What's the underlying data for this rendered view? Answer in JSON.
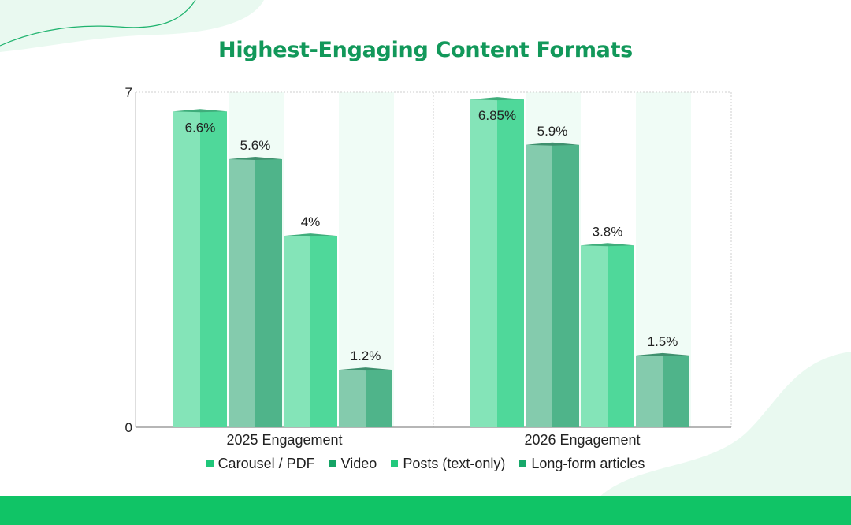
{
  "chart_data": {
    "type": "bar",
    "title": "Highest-Engaging Content Formats",
    "xlabel": "",
    "ylabel": "",
    "ylim": [
      0,
      7
    ],
    "y_ticks": [
      "0",
      "7"
    ],
    "categories": [
      "2025 Engagement",
      "2026 Engagement"
    ],
    "series": [
      {
        "name": "Carousel / PDF",
        "values": [
          6.6,
          6.85
        ],
        "labels": [
          "6.6%",
          "6.85%"
        ],
        "color": "#4fd89a",
        "legend_color": "#1fc77a"
      },
      {
        "name": "Video",
        "values": [
          5.6,
          5.9
        ],
        "labels": [
          "5.6%",
          "5.9%"
        ],
        "color": "#4fb48a",
        "legend_color": "#15a365"
      },
      {
        "name": "Posts (text-only)",
        "values": [
          4,
          3.8
        ],
        "labels": [
          "4%",
          "3.8%"
        ],
        "color": "#4fd89a",
        "legend_color": "#22c97d"
      },
      {
        "name": "Long-form articles",
        "values": [
          1.2,
          1.5
        ],
        "labels": [
          "1.2%",
          "1.5%"
        ],
        "color": "#4fb48a",
        "legend_color": "#17a86a"
      }
    ],
    "grid": true,
    "legend_position": "bottom"
  }
}
